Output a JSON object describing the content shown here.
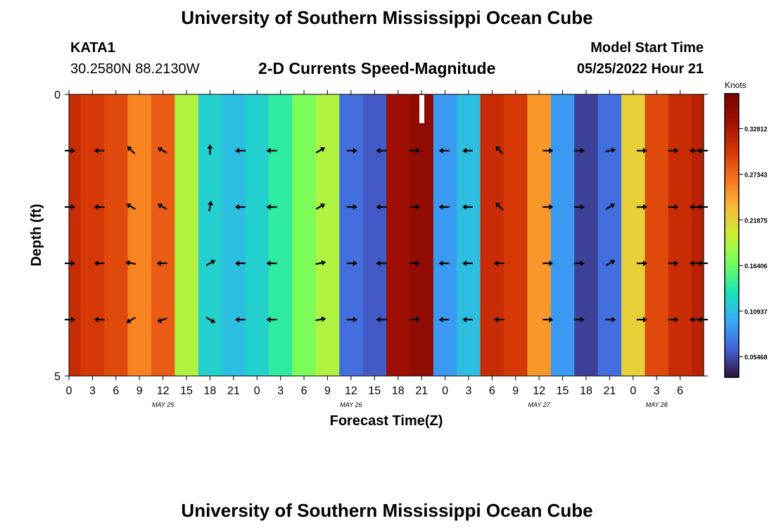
{
  "page": {
    "title": "University of Southern Mississippi Ocean Cube",
    "station": "KATA1",
    "coords": "30.2580N  88.2130W",
    "chart_title": "2-D Currents Speed-Magnitude",
    "model_label": "Model Start Time",
    "model_time": "05/25/2022 Hour 21",
    "bottom_title": "University of Southern Mississippi Ocean Cube"
  },
  "chart_data": {
    "type": "heatmap",
    "title": "2-D Currents Speed-Magnitude",
    "xlabel": "Forecast Time(Z)",
    "ylabel": "Depth (ft)",
    "x_hours": [
      0,
      3,
      6,
      9,
      12,
      15,
      18,
      21,
      24,
      27,
      30,
      33,
      36,
      39,
      42,
      45,
      48,
      51,
      54,
      57,
      60,
      63,
      66,
      69,
      72,
      75,
      78,
      81
    ],
    "x_tick_labels": [
      "0",
      "3",
      "6",
      "9",
      "12",
      "15",
      "18",
      "21",
      "0",
      "3",
      "6",
      "9",
      "12",
      "15",
      "18",
      "21",
      "0",
      "3",
      "6",
      "9",
      "12",
      "15",
      "18",
      "21",
      "0",
      "3",
      "6"
    ],
    "date_labels": [
      {
        "text": "MAY 25",
        "hour": 12
      },
      {
        "text": "MAY 26",
        "hour": 36
      },
      {
        "text": "MAY 27",
        "hour": 60
      },
      {
        "text": "MAY 28",
        "hour": 75
      }
    ],
    "ylim": [
      0,
      5
    ],
    "y_tick_labels": [
      "0",
      "5"
    ],
    "colorbar": {
      "label": "Knots",
      "range": [
        0.03,
        0.37
      ],
      "ticks": [
        "0.32812",
        "0.27343",
        "0.21875",
        "0.16406",
        "0.10937",
        "0.05468"
      ],
      "tick_values": [
        0.32812,
        0.27343,
        0.21875,
        0.16406,
        0.10937,
        0.05468
      ]
    },
    "speed_knots": [
      0.31,
      0.3,
      0.29,
      0.26,
      0.28,
      0.19,
      0.12,
      0.11,
      0.12,
      0.14,
      0.17,
      0.19,
      0.07,
      0.06,
      0.34,
      0.35,
      0.09,
      0.11,
      0.31,
      0.3,
      0.25,
      0.09,
      0.05,
      0.07,
      0.22,
      0.29,
      0.31,
      0.32
    ],
    "depth_rows": [
      {
        "depth": 1,
        "bearings": [
          90,
          270,
          315,
          300,
          0,
          270,
          270,
          60,
          90,
          270,
          90,
          270,
          270,
          315,
          90,
          90,
          80,
          90,
          90,
          270,
          270
        ]
      },
      {
        "depth": 2,
        "bearings": [
          90,
          270,
          300,
          300,
          10,
          270,
          270,
          60,
          90,
          270,
          90,
          270,
          270,
          315,
          90,
          90,
          60,
          90,
          90,
          270,
          270
        ]
      },
      {
        "depth": 3,
        "bearings": [
          90,
          270,
          280,
          270,
          60,
          270,
          270,
          80,
          90,
          270,
          90,
          270,
          270,
          270,
          90,
          90,
          60,
          90,
          90,
          270,
          270
        ]
      },
      {
        "depth": 4,
        "bearings": [
          90,
          270,
          240,
          250,
          120,
          270,
          270,
          80,
          90,
          270,
          90,
          270,
          270,
          270,
          90,
          90,
          90,
          90,
          90,
          270,
          270
        ]
      }
    ]
  }
}
